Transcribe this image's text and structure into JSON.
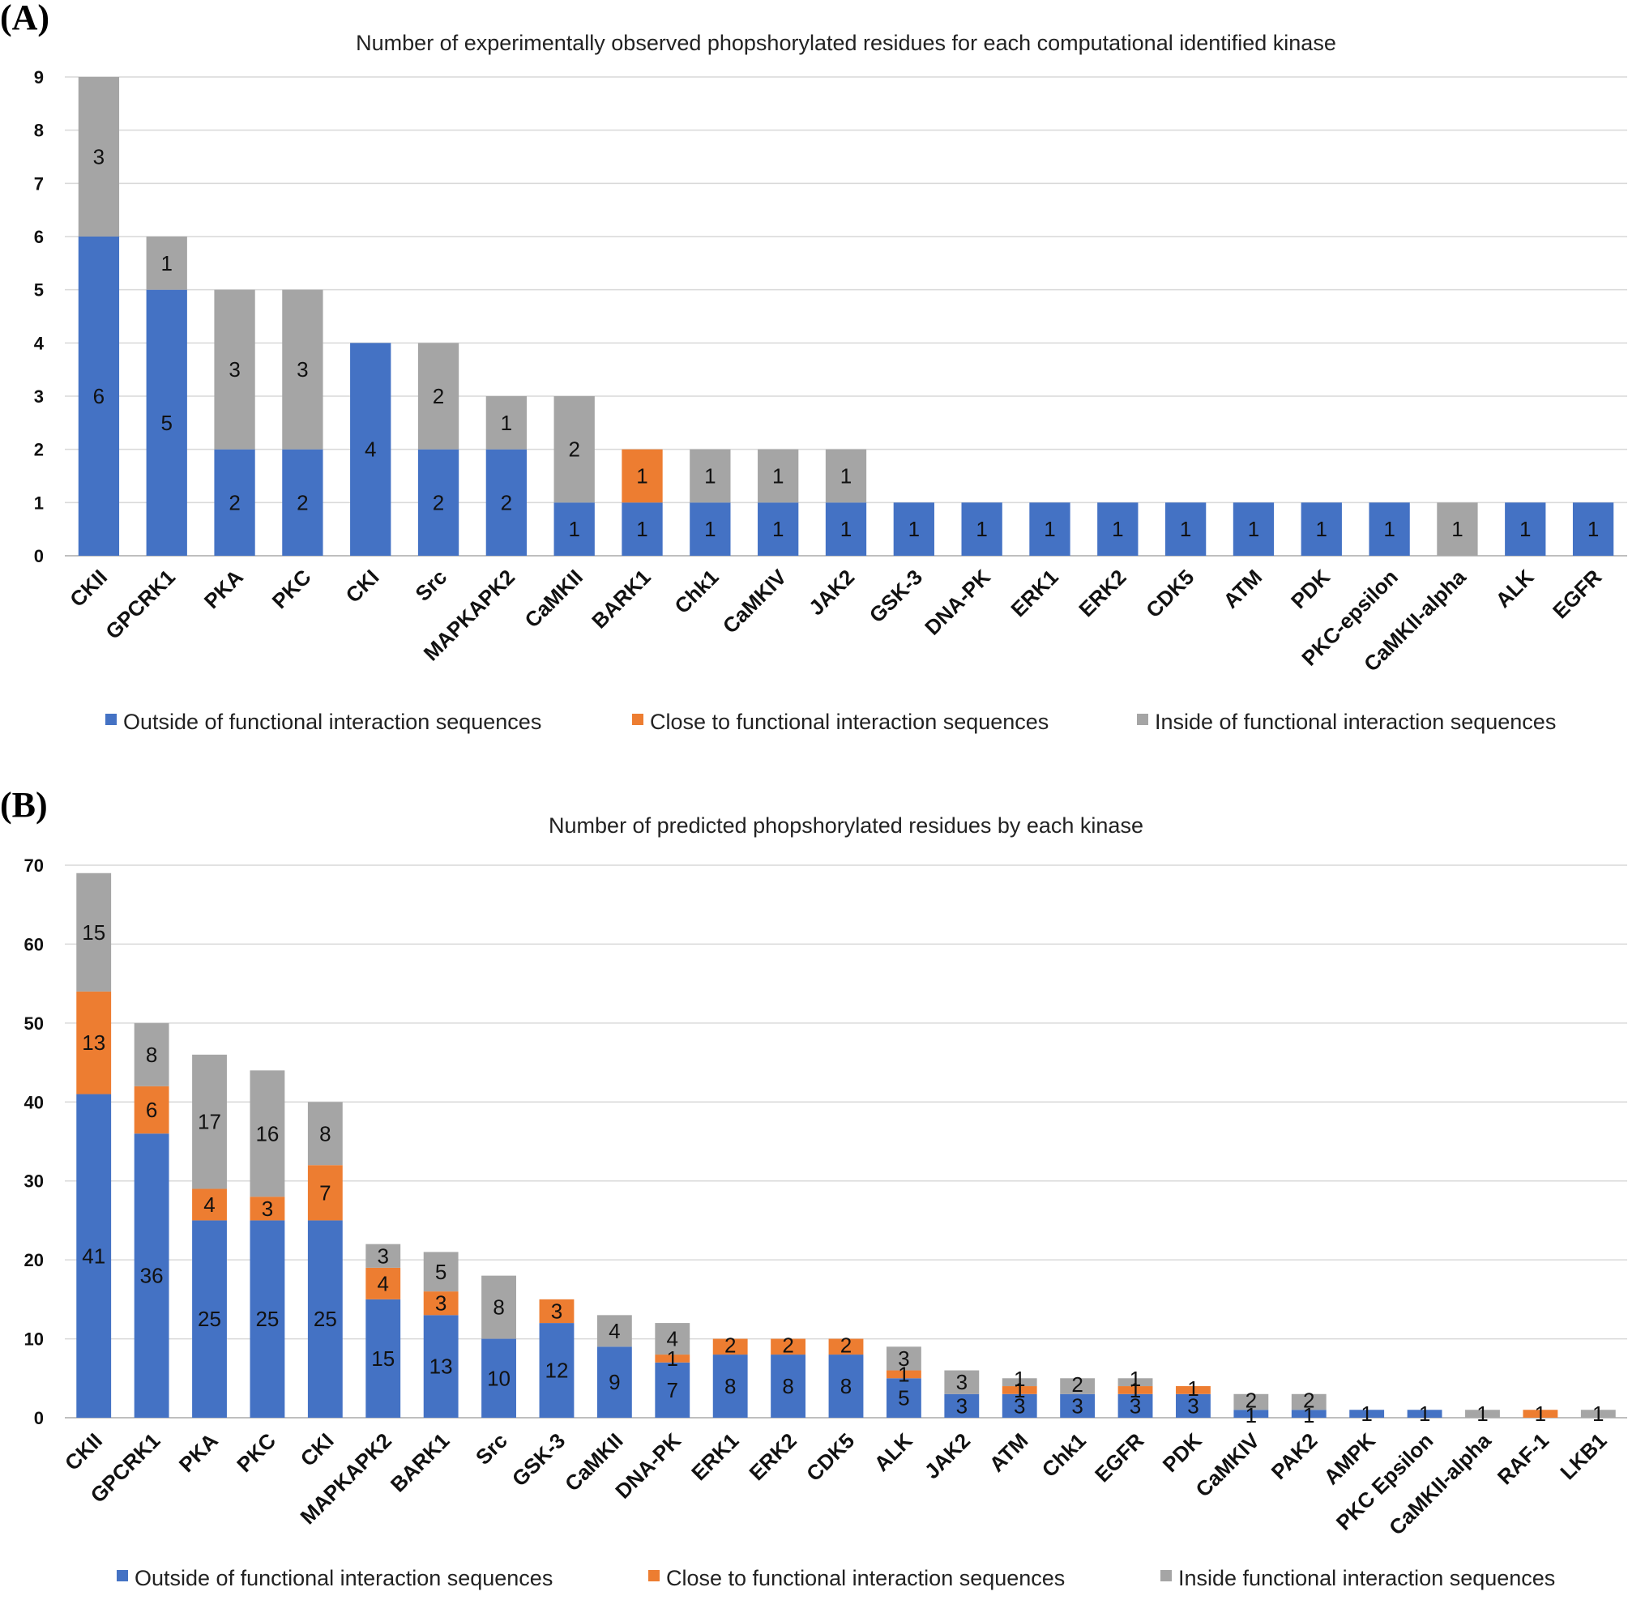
{
  "colors": {
    "outside": "#4472C4",
    "close": "#ED7D31",
    "inside": "#A5A5A5"
  },
  "chart_data": [
    {
      "panel": "(A)",
      "type": "bar",
      "stacked": true,
      "title": "Number of experimentally observed phopshorylated residues for each computational identified kinase",
      "ylim": [
        0,
        9
      ],
      "yticks": [
        0,
        1,
        2,
        3,
        4,
        5,
        6,
        7,
        8,
        9
      ],
      "grid": true,
      "legend_position": "bottom",
      "categories": [
        "CKII",
        "GPCRK1",
        "PKA",
        "PKC",
        "CKI",
        "Src",
        "MAPKAPK2",
        "CaMKII",
        "BARK1",
        "Chk1",
        "CaMKIV",
        "JAK2",
        "GSK-3",
        "DNA-PK",
        "ERK1",
        "ERK2",
        "CDK5",
        "ATM",
        "PDK",
        "PKC-epsilon",
        "CaMKII-alpha",
        "ALK",
        "EGFR"
      ],
      "series": [
        {
          "name": "Outside of functional interaction sequences",
          "key": "outside",
          "values": [
            6,
            5,
            2,
            2,
            4,
            2,
            2,
            1,
            1,
            1,
            1,
            1,
            1,
            1,
            1,
            1,
            1,
            1,
            1,
            1,
            0,
            1,
            1
          ]
        },
        {
          "name": "Close to functional interaction sequences",
          "key": "close",
          "values": [
            0,
            0,
            0,
            0,
            0,
            0,
            0,
            0,
            1,
            0,
            0,
            0,
            0,
            0,
            0,
            0,
            0,
            0,
            0,
            0,
            0,
            0,
            0
          ]
        },
        {
          "name": "Inside of functional interaction sequences",
          "key": "inside",
          "values": [
            3,
            1,
            3,
            3,
            0,
            2,
            1,
            2,
            0,
            1,
            1,
            1,
            0,
            0,
            0,
            0,
            0,
            0,
            0,
            0,
            1,
            0,
            0
          ]
        }
      ]
    },
    {
      "panel": "(B)",
      "type": "bar",
      "stacked": true,
      "title": "Number of predicted phopshorylated residues by each kinase",
      "ylim": [
        0,
        70
      ],
      "yticks": [
        0,
        10,
        20,
        30,
        40,
        50,
        60,
        70
      ],
      "grid": true,
      "legend_position": "bottom",
      "categories": [
        "CKII",
        "GPCRK1",
        "PKA",
        "PKC",
        "CKI",
        "MAPKAPK2",
        "BARK1",
        "Src",
        "GSK-3",
        "CaMKII",
        "DNA-PK",
        "ERK1",
        "ERK2",
        "CDK5",
        "ALK",
        "JAK2",
        "ATM",
        "Chk1",
        "EGFR",
        "PDK",
        "CaMKIV",
        "PAK2",
        "AMPK",
        "PKC Epsilon",
        "CaMKII-alpha",
        "RAF-1",
        "LKB1"
      ],
      "series": [
        {
          "name": "Outside of functional interaction sequences",
          "key": "outside",
          "values": [
            41,
            36,
            25,
            25,
            25,
            15,
            13,
            10,
            12,
            9,
            7,
            8,
            8,
            8,
            5,
            3,
            3,
            3,
            3,
            3,
            1,
            1,
            1,
            1,
            0,
            0,
            0
          ]
        },
        {
          "name": "Close to functional interaction sequences",
          "key": "close",
          "values": [
            13,
            6,
            4,
            3,
            7,
            4,
            3,
            0,
            3,
            0,
            1,
            2,
            2,
            2,
            1,
            0,
            1,
            0,
            1,
            1,
            0,
            0,
            0,
            0,
            0,
            1,
            0
          ]
        },
        {
          "name": "Inside functional interaction sequences",
          "key": "inside",
          "values": [
            15,
            8,
            17,
            16,
            8,
            3,
            5,
            8,
            0,
            4,
            4,
            0,
            0,
            0,
            3,
            3,
            1,
            2,
            1,
            0,
            2,
            2,
            0,
            0,
            1,
            0,
            1
          ]
        }
      ]
    }
  ]
}
